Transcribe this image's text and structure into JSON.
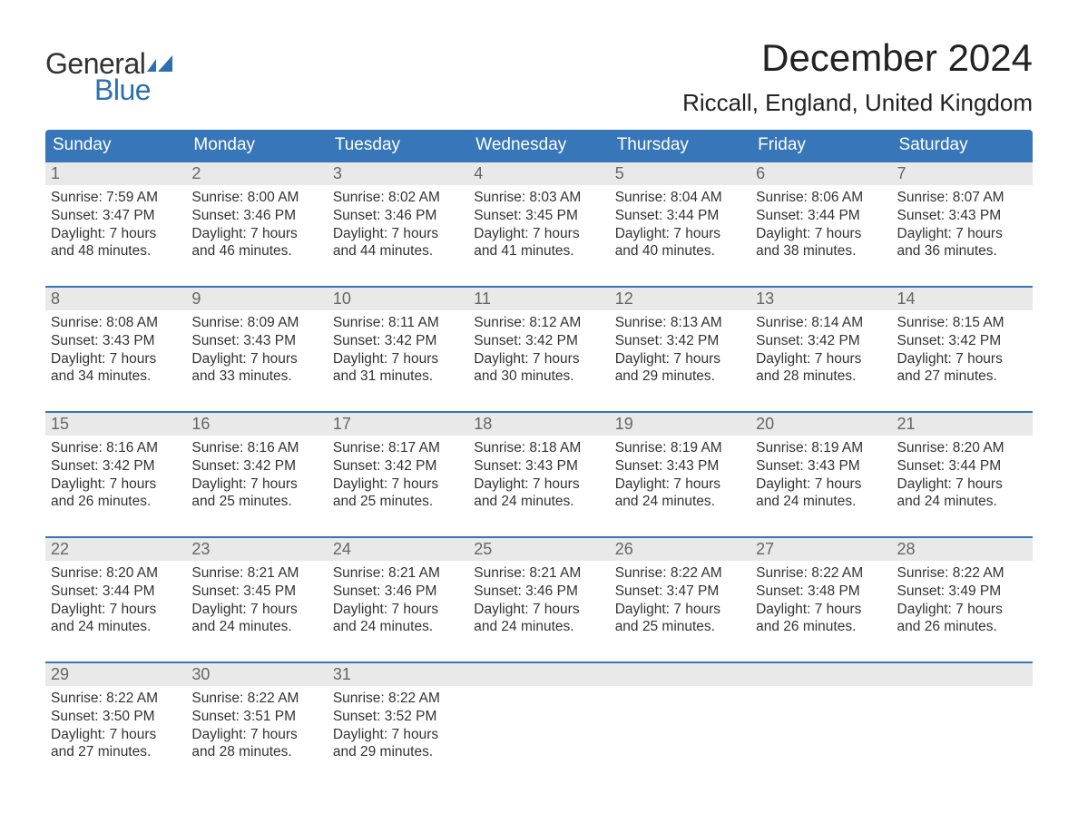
{
  "brand": {
    "word1": "General",
    "word2": "Blue",
    "flag_color": "#2f6fb0"
  },
  "title": "December 2024",
  "location": "Riccall, England, United Kingdom",
  "colors": {
    "header_bg": "#3776b8",
    "header_text": "#ffffff",
    "daynum_bg": "#e9e9e9",
    "daynum_text": "#666666",
    "body_text": "#333333",
    "week_border": "#3776b8",
    "page_bg": "#ffffff"
  },
  "weekday_labels": [
    "Sunday",
    "Monday",
    "Tuesday",
    "Wednesday",
    "Thursday",
    "Friday",
    "Saturday"
  ],
  "weeks": [
    [
      {
        "n": "1",
        "sunrise": "Sunrise: 7:59 AM",
        "sunset": "Sunset: 3:47 PM",
        "d1": "Daylight: 7 hours",
        "d2": "and 48 minutes."
      },
      {
        "n": "2",
        "sunrise": "Sunrise: 8:00 AM",
        "sunset": "Sunset: 3:46 PM",
        "d1": "Daylight: 7 hours",
        "d2": "and 46 minutes."
      },
      {
        "n": "3",
        "sunrise": "Sunrise: 8:02 AM",
        "sunset": "Sunset: 3:46 PM",
        "d1": "Daylight: 7 hours",
        "d2": "and 44 minutes."
      },
      {
        "n": "4",
        "sunrise": "Sunrise: 8:03 AM",
        "sunset": "Sunset: 3:45 PM",
        "d1": "Daylight: 7 hours",
        "d2": "and 41 minutes."
      },
      {
        "n": "5",
        "sunrise": "Sunrise: 8:04 AM",
        "sunset": "Sunset: 3:44 PM",
        "d1": "Daylight: 7 hours",
        "d2": "and 40 minutes."
      },
      {
        "n": "6",
        "sunrise": "Sunrise: 8:06 AM",
        "sunset": "Sunset: 3:44 PM",
        "d1": "Daylight: 7 hours",
        "d2": "and 38 minutes."
      },
      {
        "n": "7",
        "sunrise": "Sunrise: 8:07 AM",
        "sunset": "Sunset: 3:43 PM",
        "d1": "Daylight: 7 hours",
        "d2": "and 36 minutes."
      }
    ],
    [
      {
        "n": "8",
        "sunrise": "Sunrise: 8:08 AM",
        "sunset": "Sunset: 3:43 PM",
        "d1": "Daylight: 7 hours",
        "d2": "and 34 minutes."
      },
      {
        "n": "9",
        "sunrise": "Sunrise: 8:09 AM",
        "sunset": "Sunset: 3:43 PM",
        "d1": "Daylight: 7 hours",
        "d2": "and 33 minutes."
      },
      {
        "n": "10",
        "sunrise": "Sunrise: 8:11 AM",
        "sunset": "Sunset: 3:42 PM",
        "d1": "Daylight: 7 hours",
        "d2": "and 31 minutes."
      },
      {
        "n": "11",
        "sunrise": "Sunrise: 8:12 AM",
        "sunset": "Sunset: 3:42 PM",
        "d1": "Daylight: 7 hours",
        "d2": "and 30 minutes."
      },
      {
        "n": "12",
        "sunrise": "Sunrise: 8:13 AM",
        "sunset": "Sunset: 3:42 PM",
        "d1": "Daylight: 7 hours",
        "d2": "and 29 minutes."
      },
      {
        "n": "13",
        "sunrise": "Sunrise: 8:14 AM",
        "sunset": "Sunset: 3:42 PM",
        "d1": "Daylight: 7 hours",
        "d2": "and 28 minutes."
      },
      {
        "n": "14",
        "sunrise": "Sunrise: 8:15 AM",
        "sunset": "Sunset: 3:42 PM",
        "d1": "Daylight: 7 hours",
        "d2": "and 27 minutes."
      }
    ],
    [
      {
        "n": "15",
        "sunrise": "Sunrise: 8:16 AM",
        "sunset": "Sunset: 3:42 PM",
        "d1": "Daylight: 7 hours",
        "d2": "and 26 minutes."
      },
      {
        "n": "16",
        "sunrise": "Sunrise: 8:16 AM",
        "sunset": "Sunset: 3:42 PM",
        "d1": "Daylight: 7 hours",
        "d2": "and 25 minutes."
      },
      {
        "n": "17",
        "sunrise": "Sunrise: 8:17 AM",
        "sunset": "Sunset: 3:42 PM",
        "d1": "Daylight: 7 hours",
        "d2": "and 25 minutes."
      },
      {
        "n": "18",
        "sunrise": "Sunrise: 8:18 AM",
        "sunset": "Sunset: 3:43 PM",
        "d1": "Daylight: 7 hours",
        "d2": "and 24 minutes."
      },
      {
        "n": "19",
        "sunrise": "Sunrise: 8:19 AM",
        "sunset": "Sunset: 3:43 PM",
        "d1": "Daylight: 7 hours",
        "d2": "and 24 minutes."
      },
      {
        "n": "20",
        "sunrise": "Sunrise: 8:19 AM",
        "sunset": "Sunset: 3:43 PM",
        "d1": "Daylight: 7 hours",
        "d2": "and 24 minutes."
      },
      {
        "n": "21",
        "sunrise": "Sunrise: 8:20 AM",
        "sunset": "Sunset: 3:44 PM",
        "d1": "Daylight: 7 hours",
        "d2": "and 24 minutes."
      }
    ],
    [
      {
        "n": "22",
        "sunrise": "Sunrise: 8:20 AM",
        "sunset": "Sunset: 3:44 PM",
        "d1": "Daylight: 7 hours",
        "d2": "and 24 minutes."
      },
      {
        "n": "23",
        "sunrise": "Sunrise: 8:21 AM",
        "sunset": "Sunset: 3:45 PM",
        "d1": "Daylight: 7 hours",
        "d2": "and 24 minutes."
      },
      {
        "n": "24",
        "sunrise": "Sunrise: 8:21 AM",
        "sunset": "Sunset: 3:46 PM",
        "d1": "Daylight: 7 hours",
        "d2": "and 24 minutes."
      },
      {
        "n": "25",
        "sunrise": "Sunrise: 8:21 AM",
        "sunset": "Sunset: 3:46 PM",
        "d1": "Daylight: 7 hours",
        "d2": "and 24 minutes."
      },
      {
        "n": "26",
        "sunrise": "Sunrise: 8:22 AM",
        "sunset": "Sunset: 3:47 PM",
        "d1": "Daylight: 7 hours",
        "d2": "and 25 minutes."
      },
      {
        "n": "27",
        "sunrise": "Sunrise: 8:22 AM",
        "sunset": "Sunset: 3:48 PM",
        "d1": "Daylight: 7 hours",
        "d2": "and 26 minutes."
      },
      {
        "n": "28",
        "sunrise": "Sunrise: 8:22 AM",
        "sunset": "Sunset: 3:49 PM",
        "d1": "Daylight: 7 hours",
        "d2": "and 26 minutes."
      }
    ],
    [
      {
        "n": "29",
        "sunrise": "Sunrise: 8:22 AM",
        "sunset": "Sunset: 3:50 PM",
        "d1": "Daylight: 7 hours",
        "d2": "and 27 minutes."
      },
      {
        "n": "30",
        "sunrise": "Sunrise: 8:22 AM",
        "sunset": "Sunset: 3:51 PM",
        "d1": "Daylight: 7 hours",
        "d2": "and 28 minutes."
      },
      {
        "n": "31",
        "sunrise": "Sunrise: 8:22 AM",
        "sunset": "Sunset: 3:52 PM",
        "d1": "Daylight: 7 hours",
        "d2": "and 29 minutes."
      },
      {
        "empty": true
      },
      {
        "empty": true
      },
      {
        "empty": true
      },
      {
        "empty": true
      }
    ]
  ]
}
